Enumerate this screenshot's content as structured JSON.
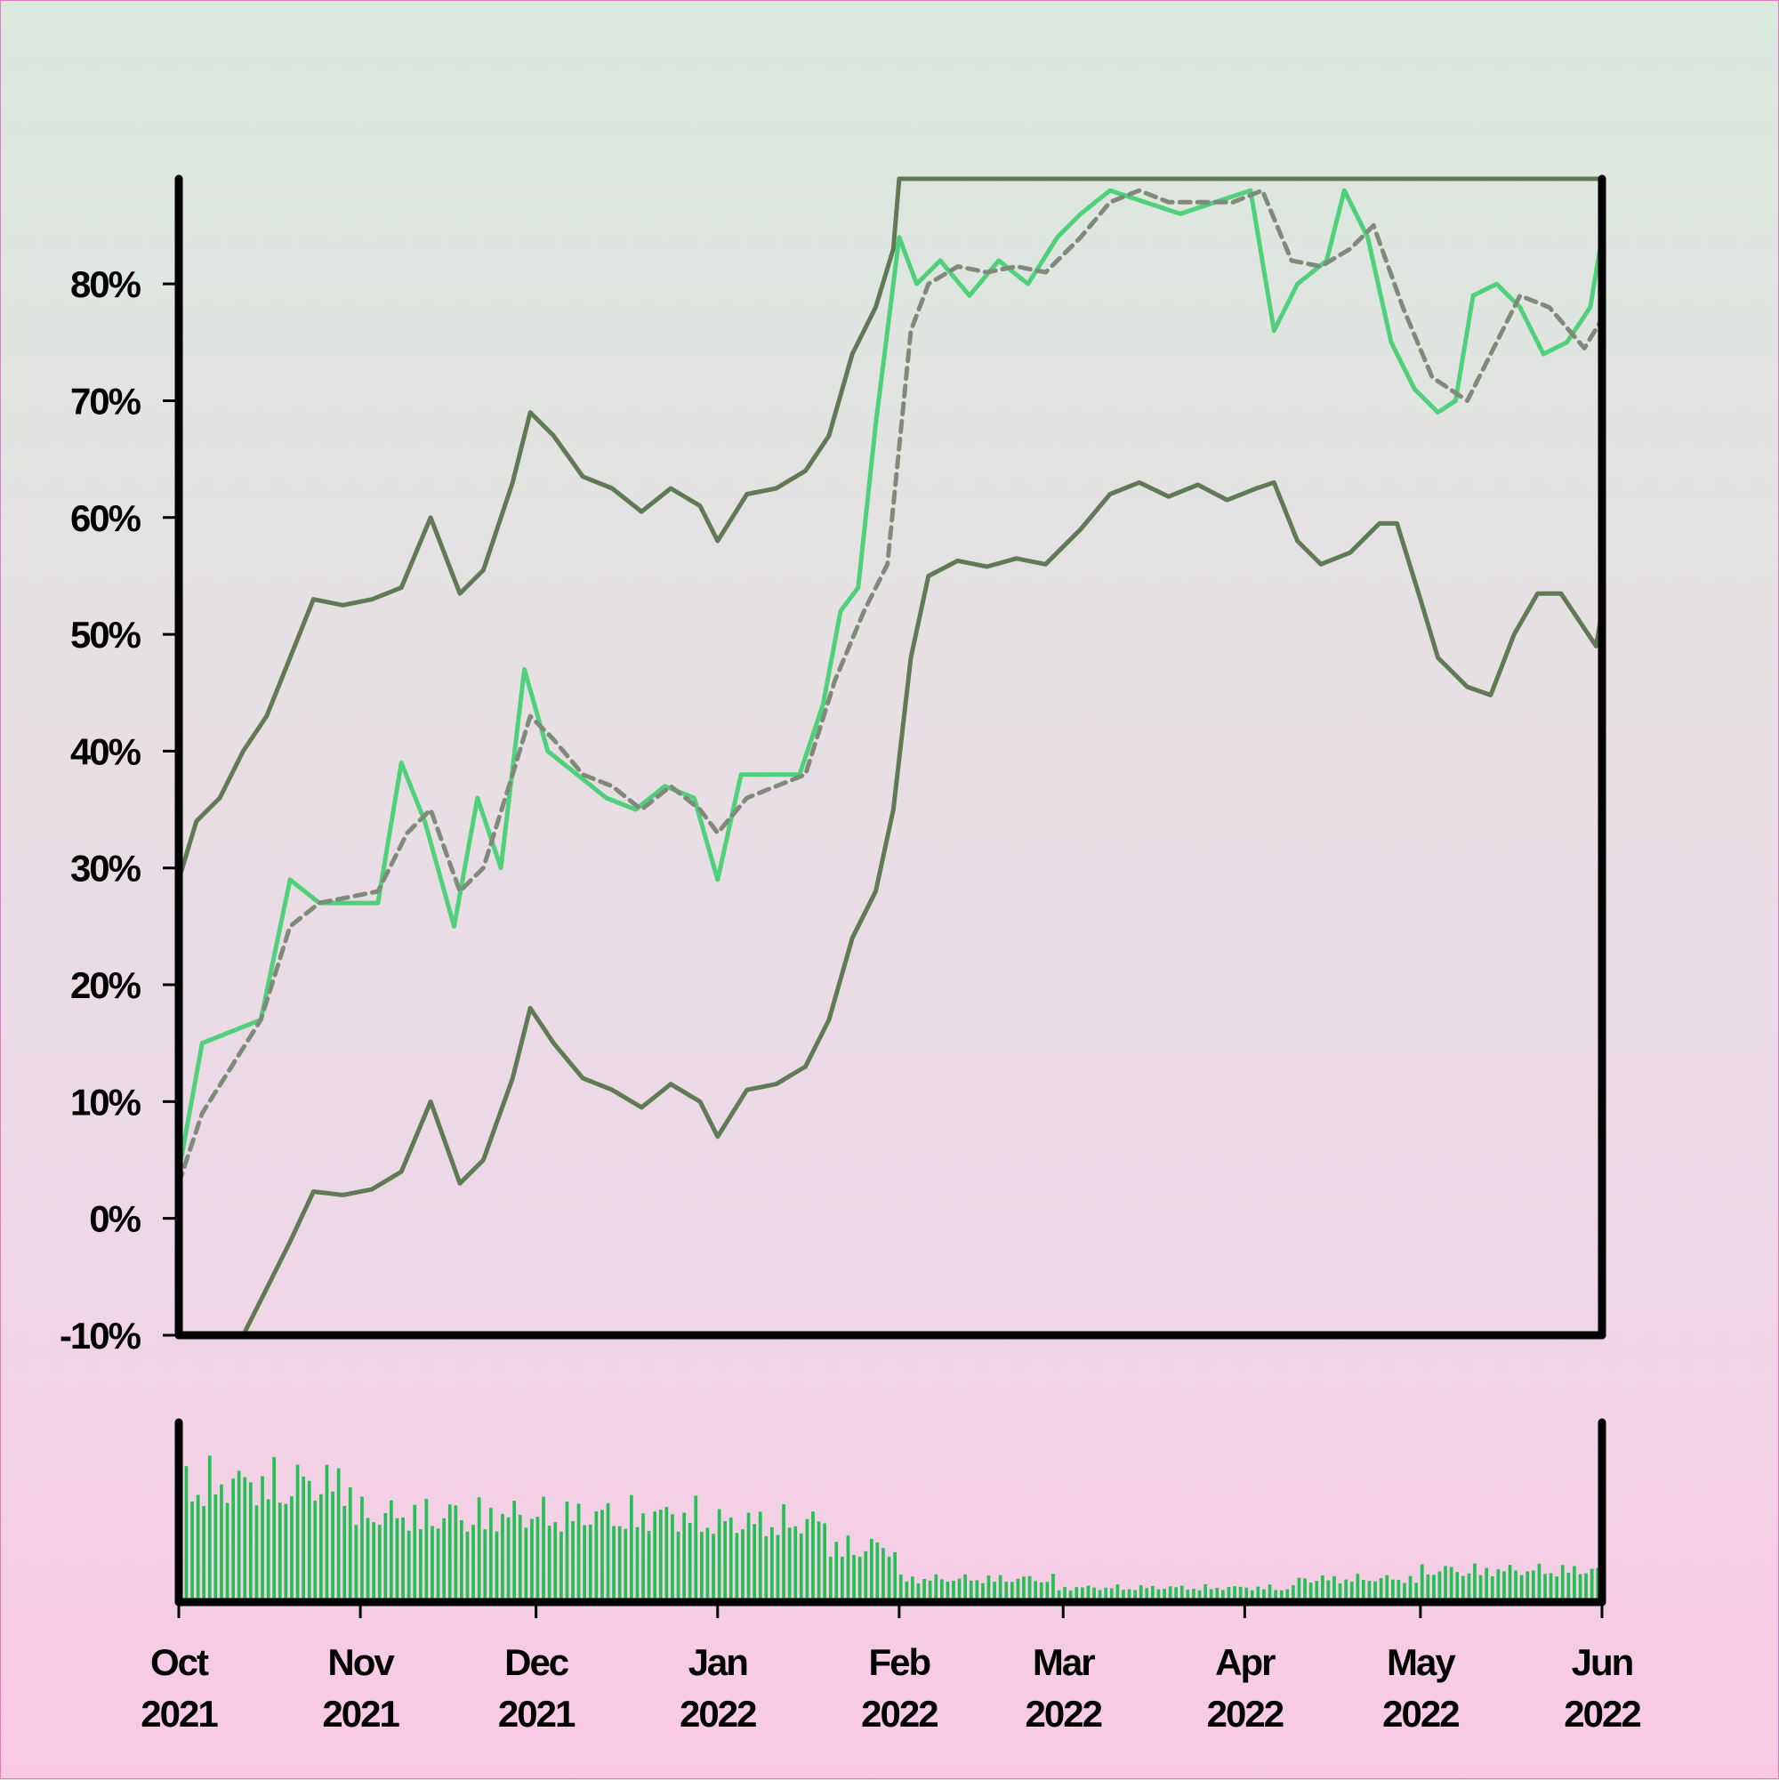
{
  "colors": {
    "price": "#4fd07a",
    "moving_average": "#808a7a",
    "bands": "#5f7a55",
    "volume": "#22c055",
    "axis": "#000000"
  },
  "chart_data": [
    {
      "type": "line",
      "title": "",
      "xlabel": "",
      "ylabel": "",
      "x_tick_labels": [
        {
          "date": "2021-10-01",
          "month": "Oct",
          "year": "2021"
        },
        {
          "date": "2021-11-01",
          "month": "Nov",
          "year": "2021"
        },
        {
          "date": "2021-12-01",
          "month": "Dec",
          "year": "2021"
        },
        {
          "date": "2022-01-01",
          "month": "Jan",
          "year": "2022"
        },
        {
          "date": "2022-02-01",
          "month": "Feb",
          "year": "2022"
        },
        {
          "date": "2022-03-01",
          "month": "Mar",
          "year": "2022"
        },
        {
          "date": "2022-04-01",
          "month": "Apr",
          "year": "2022"
        },
        {
          "date": "2022-05-01",
          "month": "May",
          "year": "2022"
        },
        {
          "date": "2022-06-01",
          "month": "Jun",
          "year": "2022"
        }
      ],
      "y_tick_labels": [
        "-10%",
        "0%",
        "10%",
        "20%",
        "30%",
        "40%",
        "50%",
        "60%",
        "70%",
        "80%"
      ],
      "y_ticks": [
        -10,
        0,
        10,
        20,
        30,
        40,
        50,
        60,
        70,
        80
      ],
      "xlim": [
        "2021-10-01",
        "2022-06-01"
      ],
      "ylim": [
        -10,
        89
      ],
      "grid": false,
      "series": [
        {
          "role": "price",
          "style": "solid",
          "points": [
            [
              "2021-10-01",
              4
            ],
            [
              "2021-10-05",
              15
            ],
            [
              "2021-10-10",
              16
            ],
            [
              "2021-10-15",
              17
            ],
            [
              "2021-10-20",
              29
            ],
            [
              "2021-10-25",
              27
            ],
            [
              "2021-10-30",
              27
            ],
            [
              "2021-11-04",
              27
            ],
            [
              "2021-11-08",
              39
            ],
            [
              "2021-11-12",
              34
            ],
            [
              "2021-11-17",
              25
            ],
            [
              "2021-11-21",
              36
            ],
            [
              "2021-11-25",
              30
            ],
            [
              "2021-11-29",
              47
            ],
            [
              "2021-12-03",
              40
            ],
            [
              "2021-12-08",
              38
            ],
            [
              "2021-12-13",
              36
            ],
            [
              "2021-12-18",
              35
            ],
            [
              "2021-12-23",
              37
            ],
            [
              "2021-12-28",
              36
            ],
            [
              "2022-01-01",
              29
            ],
            [
              "2022-01-05",
              38
            ],
            [
              "2022-01-10",
              38
            ],
            [
              "2022-01-15",
              38
            ],
            [
              "2022-01-19",
              44
            ],
            [
              "2022-01-22",
              52
            ],
            [
              "2022-01-25",
              54
            ],
            [
              "2022-01-28",
              68
            ],
            [
              "2022-02-01",
              84
            ],
            [
              "2022-02-04",
              80
            ],
            [
              "2022-02-08",
              82
            ],
            [
              "2022-02-13",
              79
            ],
            [
              "2022-02-18",
              82
            ],
            [
              "2022-02-23",
              80
            ],
            [
              "2022-02-28",
              84
            ],
            [
              "2022-03-04",
              86
            ],
            [
              "2022-03-09",
              88
            ],
            [
              "2022-03-15",
              87
            ],
            [
              "2022-03-21",
              86
            ],
            [
              "2022-03-27",
              87
            ],
            [
              "2022-04-02",
              88
            ],
            [
              "2022-04-06",
              76
            ],
            [
              "2022-04-10",
              80
            ],
            [
              "2022-04-15",
              82
            ],
            [
              "2022-04-18",
              88
            ],
            [
              "2022-04-22",
              84
            ],
            [
              "2022-04-26",
              75
            ],
            [
              "2022-04-30",
              71
            ],
            [
              "2022-05-04",
              69
            ],
            [
              "2022-05-07",
              70
            ],
            [
              "2022-05-10",
              79
            ],
            [
              "2022-05-14",
              80
            ],
            [
              "2022-05-18",
              78
            ],
            [
              "2022-05-22",
              74
            ],
            [
              "2022-05-26",
              75
            ],
            [
              "2022-05-30",
              78
            ],
            [
              "2022-06-01",
              84
            ]
          ]
        },
        {
          "role": "moving average",
          "style": "dashed",
          "points": [
            [
              "2021-10-01",
              3
            ],
            [
              "2021-10-05",
              9
            ],
            [
              "2021-10-10",
              13
            ],
            [
              "2021-10-15",
              17
            ],
            [
              "2021-10-20",
              25
            ],
            [
              "2021-10-25",
              27
            ],
            [
              "2021-10-30",
              27.5
            ],
            [
              "2021-11-04",
              28
            ],
            [
              "2021-11-09",
              33
            ],
            [
              "2021-11-13",
              35
            ],
            [
              "2021-11-18",
              28
            ],
            [
              "2021-11-22",
              30
            ],
            [
              "2021-11-27",
              38
            ],
            [
              "2021-11-30",
              43
            ],
            [
              "2021-12-04",
              41
            ],
            [
              "2021-12-09",
              38
            ],
            [
              "2021-12-14",
              37
            ],
            [
              "2021-12-19",
              35
            ],
            [
              "2021-12-24",
              37
            ],
            [
              "2021-12-29",
              35
            ],
            [
              "2022-01-01",
              33
            ],
            [
              "2022-01-06",
              36
            ],
            [
              "2022-01-11",
              37
            ],
            [
              "2022-01-16",
              38
            ],
            [
              "2022-01-21",
              46
            ],
            [
              "2022-01-26",
              52
            ],
            [
              "2022-01-30",
              56
            ],
            [
              "2022-02-03",
              76
            ],
            [
              "2022-02-06",
              80
            ],
            [
              "2022-02-11",
              81.5
            ],
            [
              "2022-02-16",
              81
            ],
            [
              "2022-02-21",
              81.5
            ],
            [
              "2022-02-26",
              81
            ],
            [
              "2022-03-04",
              84
            ],
            [
              "2022-03-09",
              87
            ],
            [
              "2022-03-14",
              88
            ],
            [
              "2022-03-19",
              87
            ],
            [
              "2022-03-24",
              87
            ],
            [
              "2022-03-30",
              87
            ],
            [
              "2022-04-04",
              88
            ],
            [
              "2022-04-09",
              82
            ],
            [
              "2022-04-14",
              81.5
            ],
            [
              "2022-04-19",
              83
            ],
            [
              "2022-04-23",
              85
            ],
            [
              "2022-04-28",
              78
            ],
            [
              "2022-05-03",
              72
            ],
            [
              "2022-05-09",
              70
            ],
            [
              "2022-05-14",
              75
            ],
            [
              "2022-05-18",
              79
            ],
            [
              "2022-05-23",
              78
            ],
            [
              "2022-05-29",
              74.5
            ],
            [
              "2022-06-01",
              77
            ]
          ]
        },
        {
          "role": "upper band",
          "style": "solid",
          "points": [
            [
              "2021-10-01",
              29
            ],
            [
              "2021-10-04",
              34
            ],
            [
              "2021-10-08",
              36
            ],
            [
              "2021-10-12",
              40
            ],
            [
              "2021-10-16",
              43
            ],
            [
              "2021-10-20",
              48
            ],
            [
              "2021-10-24",
              53
            ],
            [
              "2021-10-29",
              52.5
            ],
            [
              "2021-11-03",
              53
            ],
            [
              "2021-11-08",
              54
            ],
            [
              "2021-11-13",
              60
            ],
            [
              "2021-11-18",
              53.5
            ],
            [
              "2021-11-22",
              55.5
            ],
            [
              "2021-11-27",
              63
            ],
            [
              "2021-11-30",
              69
            ],
            [
              "2021-12-04",
              67
            ],
            [
              "2021-12-09",
              63.5
            ],
            [
              "2021-12-14",
              62.5
            ],
            [
              "2021-12-19",
              60.5
            ],
            [
              "2021-12-24",
              62.5
            ],
            [
              "2021-12-29",
              61
            ],
            [
              "2022-01-01",
              58
            ],
            [
              "2022-01-06",
              62
            ],
            [
              "2022-01-11",
              62.5
            ],
            [
              "2022-01-16",
              64
            ],
            [
              "2022-01-20",
              67
            ],
            [
              "2022-01-24",
              74
            ],
            [
              "2022-01-28",
              78
            ],
            [
              "2022-01-31",
              83
            ],
            [
              "2022-02-01",
              89
            ],
            [
              "2022-06-01",
              89
            ]
          ]
        },
        {
          "role": "lower band",
          "style": "solid",
          "points": [
            [
              "2021-10-12",
              -10
            ],
            [
              "2021-10-16",
              -6
            ],
            [
              "2021-10-20",
              -2
            ],
            [
              "2021-10-24",
              2.3
            ],
            [
              "2021-10-29",
              2
            ],
            [
              "2021-11-03",
              2.5
            ],
            [
              "2021-11-08",
              4
            ],
            [
              "2021-11-13",
              10
            ],
            [
              "2021-11-18",
              3
            ],
            [
              "2021-11-22",
              5
            ],
            [
              "2021-11-27",
              12
            ],
            [
              "2021-11-30",
              18
            ],
            [
              "2021-12-04",
              15
            ],
            [
              "2021-12-09",
              12
            ],
            [
              "2021-12-14",
              11
            ],
            [
              "2021-12-19",
              9.5
            ],
            [
              "2021-12-24",
              11.5
            ],
            [
              "2021-12-29",
              10
            ],
            [
              "2022-01-01",
              7
            ],
            [
              "2022-01-06",
              11
            ],
            [
              "2022-01-11",
              11.5
            ],
            [
              "2022-01-16",
              13
            ],
            [
              "2022-01-20",
              17
            ],
            [
              "2022-01-24",
              24
            ],
            [
              "2022-01-28",
              28
            ],
            [
              "2022-01-31",
              35
            ],
            [
              "2022-02-03",
              48
            ],
            [
              "2022-02-06",
              55
            ],
            [
              "2022-02-11",
              56.3
            ],
            [
              "2022-02-16",
              55.8
            ],
            [
              "2022-02-21",
              56.5
            ],
            [
              "2022-02-26",
              56
            ],
            [
              "2022-03-04",
              59
            ],
            [
              "2022-03-09",
              62
            ],
            [
              "2022-03-14",
              63
            ],
            [
              "2022-03-19",
              61.8
            ],
            [
              "2022-03-24",
              62.8
            ],
            [
              "2022-03-29",
              61.5
            ],
            [
              "2022-04-03",
              62.5
            ],
            [
              "2022-04-06",
              63
            ],
            [
              "2022-04-10",
              58
            ],
            [
              "2022-04-14",
              56
            ],
            [
              "2022-04-19",
              57
            ],
            [
              "2022-04-24",
              59.5
            ],
            [
              "2022-04-27",
              59.5
            ],
            [
              "2022-05-01",
              53
            ],
            [
              "2022-05-04",
              48
            ],
            [
              "2022-05-09",
              45.5
            ],
            [
              "2022-05-13",
              44.8
            ],
            [
              "2022-05-17",
              50
            ],
            [
              "2022-05-21",
              53.5
            ],
            [
              "2022-05-25",
              53.5
            ],
            [
              "2022-05-31",
              49
            ],
            [
              "2022-06-01",
              52
            ]
          ]
        }
      ]
    },
    {
      "type": "bar",
      "title": "",
      "role": "volume",
      "y_tick_labels": [],
      "ylim": [
        0,
        1
      ],
      "segments": [
        {
          "start": "2021-10-01",
          "end": "2021-10-31",
          "level": 0.82
        },
        {
          "start": "2021-10-31",
          "end": "2021-12-31",
          "level": 0.6
        },
        {
          "start": "2021-12-31",
          "end": "2022-01-20",
          "level": 0.55
        },
        {
          "start": "2022-01-20",
          "end": "2022-02-01",
          "level": 0.38
        },
        {
          "start": "2022-02-01",
          "end": "2022-02-28",
          "level": 0.16
        },
        {
          "start": "2022-02-28",
          "end": "2022-04-10",
          "level": 0.1
        },
        {
          "start": "2022-04-10",
          "end": "2022-05-01",
          "level": 0.16
        },
        {
          "start": "2022-05-01",
          "end": "2022-06-01",
          "level": 0.22
        }
      ]
    }
  ]
}
